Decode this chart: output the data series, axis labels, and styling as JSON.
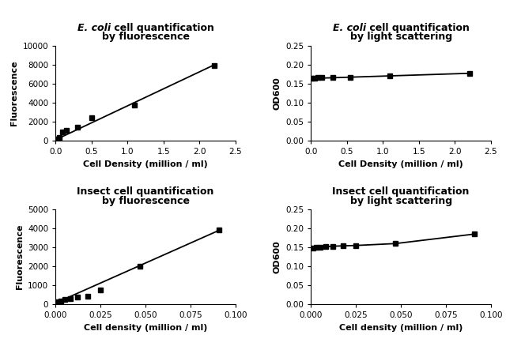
{
  "ecoli_fluor": {
    "title_italic": "E. coli",
    "title_normal": " cell quantification",
    "title_line2": "by fluorescence",
    "xlabel": "Cell Density (million / ml)",
    "ylabel": "Fluorescence",
    "x_data": [
      0.01,
      0.05,
      0.1,
      0.15,
      0.3,
      0.5,
      1.1,
      2.2
    ],
    "y_data": [
      200,
      350,
      900,
      1050,
      1400,
      2450,
      3750,
      7900
    ],
    "xlim": [
      0,
      2.5
    ],
    "ylim": [
      0,
      10000
    ],
    "xticks": [
      0.0,
      0.5,
      1.0,
      1.5,
      2.0,
      2.5
    ],
    "yticks": [
      0,
      2000,
      4000,
      6000,
      8000,
      10000
    ],
    "fit_x": [
      0,
      2.2
    ],
    "fit_y": [
      100,
      7950
    ]
  },
  "ecoli_scatter": {
    "title_italic": "E. coli",
    "title_normal": " cell quantification",
    "title_line2": "by light scattering",
    "xlabel": "Cell Density (million / ml)",
    "ylabel": "OD600",
    "x_data": [
      0.01,
      0.05,
      0.1,
      0.15,
      0.3,
      0.55,
      1.1,
      2.2
    ],
    "y_data": [
      0.164,
      0.165,
      0.166,
      0.167,
      0.167,
      0.167,
      0.17,
      0.176
    ],
    "xlim": [
      0,
      2.5
    ],
    "ylim": [
      0.0,
      0.25
    ],
    "xticks": [
      0.0,
      0.5,
      1.0,
      1.5,
      2.0,
      2.5
    ],
    "yticks": [
      0.0,
      0.05,
      0.1,
      0.15,
      0.2,
      0.25
    ],
    "fit_x": [
      0,
      2.2
    ],
    "fit_y": [
      0.1635,
      0.177
    ]
  },
  "insect_fluor": {
    "title_italic": null,
    "title_normal": "Insect cell quantification",
    "title_line2": "by fluorescence",
    "xlabel": "Cell density (million / ml)",
    "ylabel": "Fluorescence",
    "x_data": [
      0.001,
      0.003,
      0.005,
      0.008,
      0.012,
      0.018,
      0.025,
      0.047,
      0.091
    ],
    "y_data": [
      150,
      200,
      250,
      310,
      390,
      430,
      760,
      2000,
      3900
    ],
    "xlim": [
      0,
      0.1
    ],
    "ylim": [
      0,
      5000
    ],
    "xticks": [
      0.0,
      0.025,
      0.05,
      0.075,
      0.1
    ],
    "yticks": [
      0,
      1000,
      2000,
      3000,
      4000,
      5000
    ],
    "fit_x": [
      0,
      0.091
    ],
    "fit_y": [
      80,
      3900
    ]
  },
  "insect_scatter": {
    "title_italic": null,
    "title_normal": "Insect cell quantification",
    "title_line2": "by light scattering",
    "xlabel": "Cell density (million / ml)",
    "ylabel": "OD600",
    "x_data": [
      0.001,
      0.003,
      0.005,
      0.008,
      0.012,
      0.018,
      0.025,
      0.047,
      0.091
    ],
    "y_data": [
      0.149,
      0.15,
      0.151,
      0.152,
      0.153,
      0.154,
      0.155,
      0.16,
      0.185
    ],
    "xlim": [
      0,
      0.1
    ],
    "ylim": [
      0.0,
      0.25
    ],
    "xticks": [
      0.0,
      0.025,
      0.05,
      0.075,
      0.1
    ],
    "yticks": [
      0.0,
      0.05,
      0.1,
      0.15,
      0.2,
      0.25
    ],
    "fit_x": [
      0.0,
      0.001,
      0.003,
      0.005,
      0.008,
      0.012,
      0.018,
      0.025,
      0.047,
      0.091
    ],
    "fit_y": [
      0.148,
      0.149,
      0.15,
      0.151,
      0.152,
      0.153,
      0.154,
      0.155,
      0.16,
      0.185
    ]
  },
  "marker": "s",
  "marker_size": 5,
  "line_color": "#000000",
  "marker_color": "#000000",
  "line_width": 1.3,
  "background_color": "#ffffff",
  "title_fontsize": 9,
  "label_fontsize": 8,
  "tick_fontsize": 7.5
}
